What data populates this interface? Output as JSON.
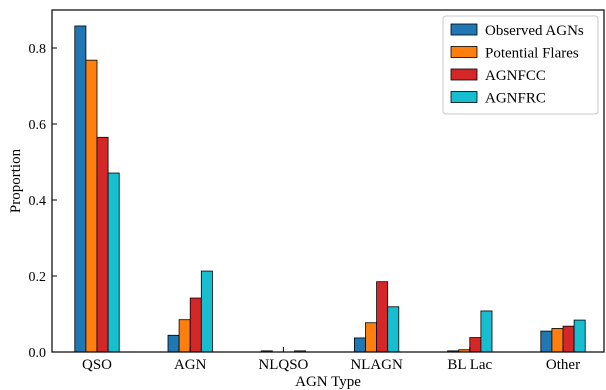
{
  "chart_data": {
    "type": "bar",
    "title": "",
    "xlabel": "AGN Type",
    "ylabel": "Proportion",
    "ylim": [
      0,
      0.9
    ],
    "yticks": [
      0.0,
      0.2,
      0.4,
      0.6,
      0.8
    ],
    "ytick_labels": [
      "0.0",
      "0.2",
      "0.4",
      "0.6",
      "0.8"
    ],
    "grid": false,
    "legend_position": "top-right",
    "categories": [
      "QSO",
      "AGN",
      "NLQSO",
      "NLAGN",
      "BL Lac",
      "Other"
    ],
    "series": [
      {
        "name": "Observed AGNs",
        "color": "#1f77b4",
        "values": [
          0.858,
          0.044,
          0.003,
          0.037,
          0.003,
          0.055
        ]
      },
      {
        "name": "Potential Flares",
        "color": "#ff7f0e",
        "values": [
          0.768,
          0.085,
          0.0,
          0.077,
          0.006,
          0.062
        ]
      },
      {
        "name": "AGNFCC",
        "color": "#d62728",
        "values": [
          0.565,
          0.142,
          0.0,
          0.185,
          0.038,
          0.068
        ]
      },
      {
        "name": "AGNFRC",
        "color": "#17becf",
        "values": [
          0.471,
          0.213,
          0.003,
          0.119,
          0.108,
          0.084
        ]
      }
    ]
  }
}
